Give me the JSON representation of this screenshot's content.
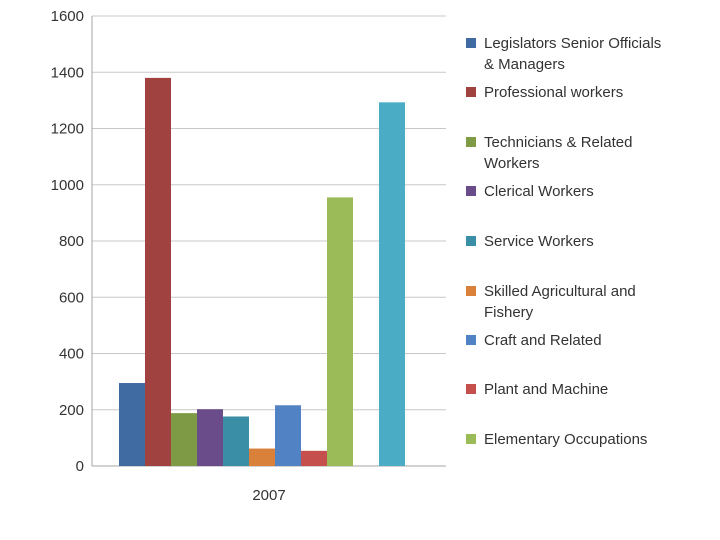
{
  "chart_data": {
    "type": "bar",
    "categories": [
      "2007"
    ],
    "ylim": [
      0,
      1600
    ],
    "yticks": [
      "0",
      "200",
      "400",
      "600",
      "800",
      "1000",
      "1200",
      "1400",
      "1600"
    ],
    "grid": true,
    "legend_position": "right",
    "series": [
      {
        "name": "Legislators Senior Officials & Managers",
        "legend_lines": [
          "Legislators Senior Officials",
          "& Managers"
        ],
        "values": [
          295
        ],
        "color": "#3F6AA2"
      },
      {
        "name": "Professional workers",
        "legend_lines": [
          "Professional workers"
        ],
        "values": [
          1380
        ],
        "color": "#A04240"
      },
      {
        "name": "Technicians & Related Workers",
        "legend_lines": [
          "Technicians & Related",
          "Workers"
        ],
        "values": [
          188
        ],
        "color": "#7E9A44"
      },
      {
        "name": "Clerical Workers",
        "legend_lines": [
          "Clerical Workers"
        ],
        "values": [
          202
        ],
        "color": "#6A4C8A"
      },
      {
        "name": "Service Workers",
        "legend_lines": [
          "Service Workers"
        ],
        "values": [
          176
        ],
        "color": "#3A8FA6"
      },
      {
        "name": "Skilled Agricultural and Fishery",
        "legend_lines": [
          "Skilled Agricultural and",
          "Fishery"
        ],
        "values": [
          62
        ],
        "color": "#D9803A"
      },
      {
        "name": "Craft and Related",
        "legend_lines": [
          "Craft and Related"
        ],
        "values": [
          216
        ],
        "color": "#5183C4"
      },
      {
        "name": "Plant and Machine",
        "legend_lines": [
          "Plant and Machine"
        ],
        "values": [
          54
        ],
        "color": "#C54F4C"
      },
      {
        "name": "Elementary Occupations",
        "legend_lines": [
          "Elementary Occupations"
        ],
        "values": [
          955
        ],
        "color": "#9BBB59"
      },
      {
        "name": "",
        "legend_lines": [],
        "values": [
          0
        ],
        "color": "#8064A2"
      },
      {
        "name": "",
        "legend_lines": [],
        "values": [
          1293
        ],
        "color": "#4BACC6"
      }
    ]
  }
}
